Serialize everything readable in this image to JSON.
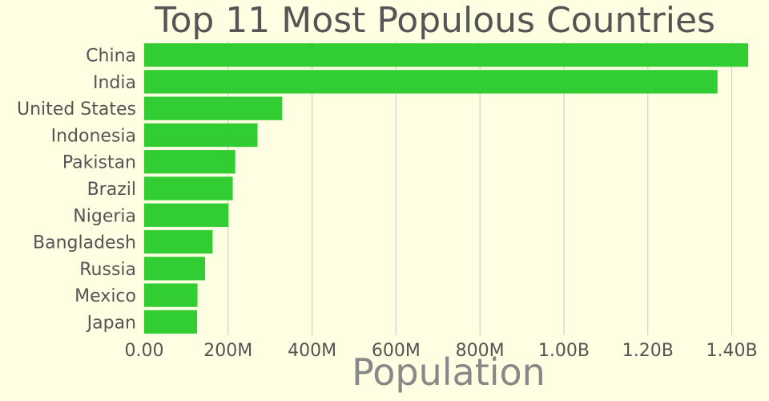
{
  "chart_data": {
    "type": "bar",
    "orientation": "horizontal",
    "title": "Top 11 Most Populous Countries",
    "xlabel": "Population",
    "ylabel": "",
    "categories": [
      "China",
      "India",
      "United States",
      "Indonesia",
      "Pakistan",
      "Brazil",
      "Nigeria",
      "Bangladesh",
      "Russia",
      "Mexico",
      "Japan"
    ],
    "values": [
      1439000000,
      1366000000,
      329000000,
      270000000,
      217000000,
      211000000,
      201000000,
      163000000,
      145000000,
      127000000,
      126000000
    ],
    "xlim": [
      0,
      1460000000
    ],
    "xticks": [
      0,
      200000000,
      400000000,
      600000000,
      800000000,
      1000000000,
      1200000000,
      1400000000
    ],
    "xtick_labels": [
      "0.00",
      "200M",
      "400M",
      "600M",
      "800M",
      "1.00B",
      "1.20B",
      "1.40B"
    ],
    "grid": true,
    "legend": "none",
    "colors": {
      "bar": "#32CD32",
      "background": "#FEFEE2",
      "grid": "#C8C8C8",
      "text": "#555555",
      "xlabel": "#888888"
    }
  }
}
